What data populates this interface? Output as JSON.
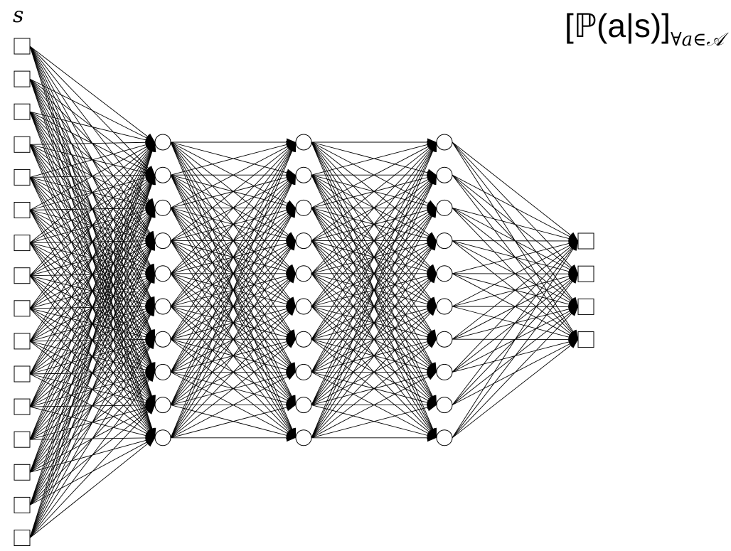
{
  "labels": {
    "input": "s",
    "output_main": "[ℙ(a|s)]",
    "output_sub": "∀a∈𝒜"
  },
  "network": {
    "layers": [
      {
        "name": "input",
        "units": 16,
        "shape": "square"
      },
      {
        "name": "hidden-1",
        "units": 10,
        "shape": "circle"
      },
      {
        "name": "hidden-2",
        "units": 10,
        "shape": "circle"
      },
      {
        "name": "hidden-3",
        "units": 10,
        "shape": "circle"
      },
      {
        "name": "output",
        "units": 4,
        "shape": "square"
      }
    ],
    "connectivity": "fully-connected"
  },
  "colors": {
    "stroke": "#000000",
    "fill": "#ffffff",
    "arrow": "#000000"
  }
}
